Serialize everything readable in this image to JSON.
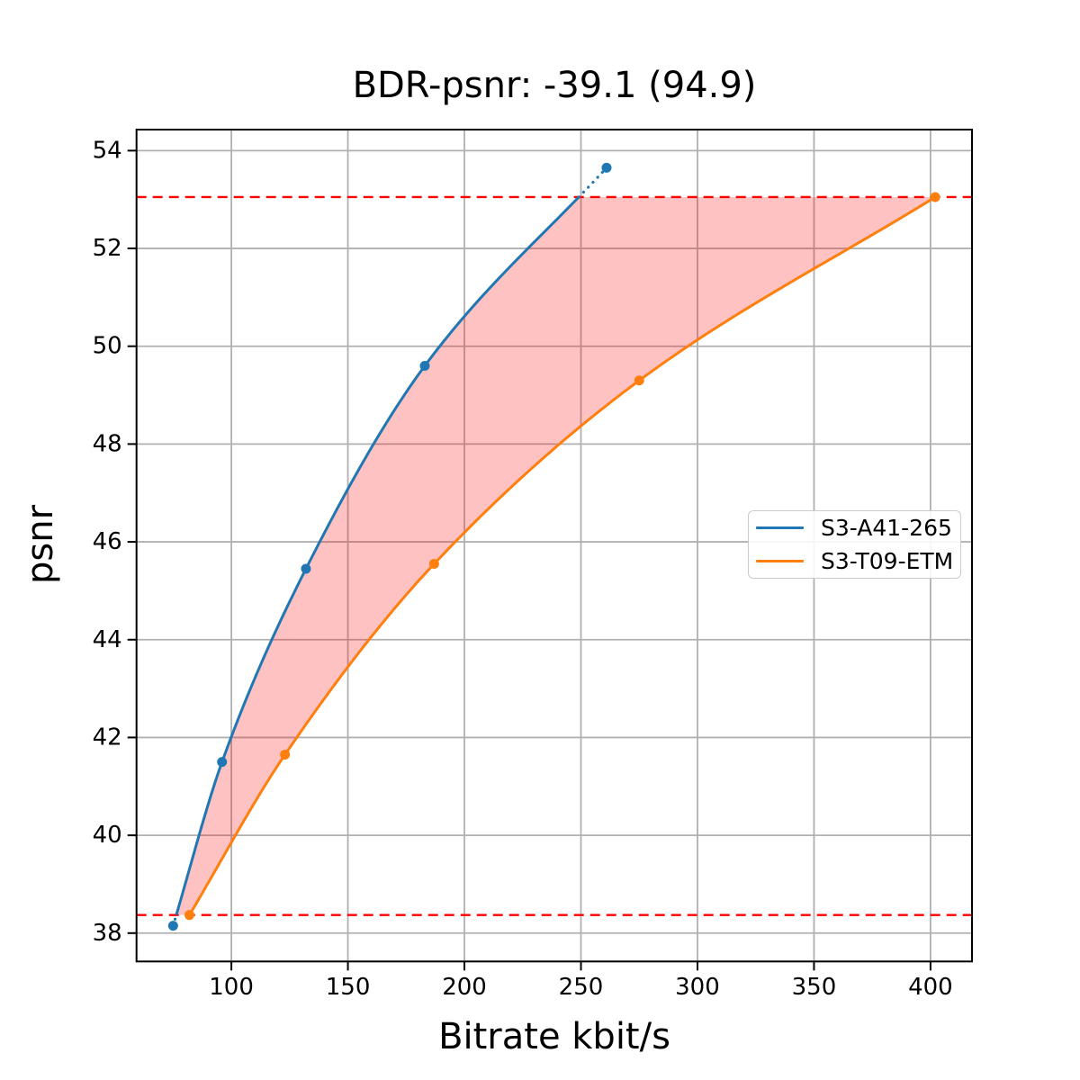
{
  "figure": {
    "background": "#ffffff",
    "text_color": "#000000"
  },
  "chart_data": {
    "type": "line",
    "title": "BDR-psnr: -39.1 (94.9)",
    "xlabel": "Bitrate kbit/s",
    "ylabel": "psnr",
    "xlim": [
      59.3,
      417.8
    ],
    "ylim": [
      37.42,
      54.43
    ],
    "xticks": [
      100,
      150,
      200,
      250,
      300,
      350,
      400
    ],
    "yticks": [
      38,
      40,
      42,
      44,
      46,
      48,
      50,
      52,
      54
    ],
    "grid": true,
    "grid_color": "#b0b0b0",
    "frame_color": "#000000",
    "series": [
      {
        "name": "S3-A41-265",
        "color": "#1f77b4",
        "marker": "circle",
        "x": [
          75,
          96,
          132,
          183,
          261
        ],
        "y": [
          38.15,
          41.5,
          45.45,
          49.6,
          53.65
        ]
      },
      {
        "name": "S3-T09-ETM",
        "color": "#ff7f0e",
        "marker": "circle",
        "x": [
          82,
          123,
          187,
          275,
          402
        ],
        "y": [
          38.37,
          41.65,
          45.55,
          49.3,
          53.05
        ]
      }
    ],
    "hlines": [
      {
        "y": 53.05,
        "color": "#ff0000",
        "style": "dashed"
      },
      {
        "y": 38.37,
        "color": "#ff0000",
        "style": "dashed"
      }
    ],
    "shaded_region": {
      "description": "area between the two rate-distortion curves inside the psnr overlap range; curve parts outside the overlap are drawn dotted",
      "y_range": [
        38.37,
        53.05
      ],
      "fill": "rgba(255,0,0,0.24)"
    },
    "legend": {
      "position": "center-right",
      "entries": [
        "S3-A41-265",
        "S3-T09-ETM"
      ]
    }
  }
}
